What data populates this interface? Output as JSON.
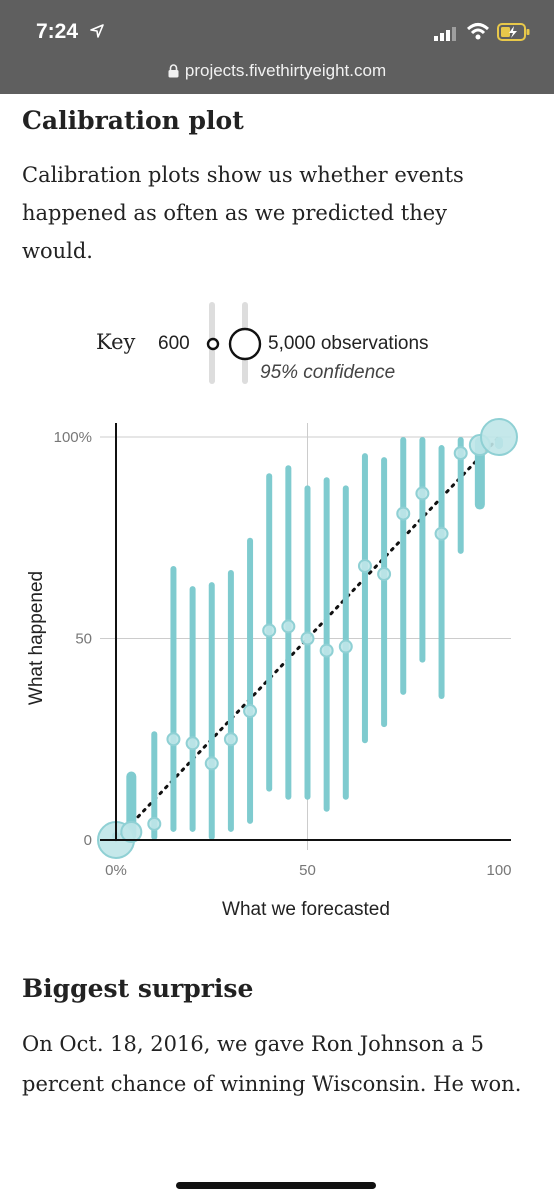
{
  "status_bar": {
    "time": "7:24"
  },
  "browser": {
    "url": "projects.fivethirtyeight.com"
  },
  "calibration": {
    "title": "Calibration plot",
    "description": "Calibration plots show us whether events happened as often as we predicted they would."
  },
  "key": {
    "label": "Key",
    "small_count": "600",
    "large_count": "5,000 observations",
    "confidence": "95% confidence"
  },
  "colors": {
    "accent": "#7fcbcf",
    "point": "#bfe6e8",
    "grid": "#cccccc",
    "axis": "#111111"
  },
  "chart_data": {
    "type": "scatter",
    "xlabel": "What we forecasted",
    "ylabel": "What happened",
    "xlim": [
      0,
      100
    ],
    "ylim": [
      0,
      100
    ],
    "x_ticks": [
      "0%",
      "50",
      "100"
    ],
    "y_ticks": [
      "0",
      "50",
      "100%"
    ],
    "reference_line": "diagonal dotted",
    "grid": true,
    "series": [
      {
        "points": [
          {
            "x": 0,
            "y": 0,
            "low": 0,
            "high": 2,
            "size": "large"
          },
          {
            "x": 4,
            "y": 2,
            "low": 0,
            "high": 17,
            "size": "medium"
          },
          {
            "x": 10,
            "y": 4,
            "low": 0,
            "high": 27,
            "size": "small"
          },
          {
            "x": 15,
            "y": 25,
            "low": 2,
            "high": 68,
            "size": "small"
          },
          {
            "x": 20,
            "y": 24,
            "low": 2,
            "high": 63,
            "size": "small"
          },
          {
            "x": 25,
            "y": 19,
            "low": 0,
            "high": 64,
            "size": "small"
          },
          {
            "x": 30,
            "y": 25,
            "low": 2,
            "high": 67,
            "size": "small"
          },
          {
            "x": 35,
            "y": 32,
            "low": 4,
            "high": 75,
            "size": "small"
          },
          {
            "x": 40,
            "y": 52,
            "low": 12,
            "high": 91,
            "size": "small"
          },
          {
            "x": 45,
            "y": 53,
            "low": 10,
            "high": 93,
            "size": "small"
          },
          {
            "x": 50,
            "y": 50,
            "low": 10,
            "high": 88,
            "size": "small"
          },
          {
            "x": 55,
            "y": 47,
            "low": 7,
            "high": 90,
            "size": "small"
          },
          {
            "x": 60,
            "y": 48,
            "low": 10,
            "high": 88,
            "size": "small"
          },
          {
            "x": 65,
            "y": 68,
            "low": 24,
            "high": 96,
            "size": "small"
          },
          {
            "x": 70,
            "y": 66,
            "low": 28,
            "high": 95,
            "size": "small"
          },
          {
            "x": 75,
            "y": 81,
            "low": 36,
            "high": 100,
            "size": "small"
          },
          {
            "x": 80,
            "y": 86,
            "low": 44,
            "high": 100,
            "size": "small"
          },
          {
            "x": 85,
            "y": 76,
            "low": 35,
            "high": 98,
            "size": "small"
          },
          {
            "x": 90,
            "y": 96,
            "low": 71,
            "high": 100,
            "size": "small"
          },
          {
            "x": 95,
            "y": 98,
            "low": 82,
            "high": 100,
            "size": "medium"
          },
          {
            "x": 100,
            "y": 100,
            "low": 97,
            "high": 100,
            "size": "large"
          }
        ]
      }
    ]
  },
  "surprise": {
    "title": "Biggest surprise",
    "description": "On Oct. 18, 2016, we gave Ron Johnson a 5 percent chance of winning Wisconsin. He won."
  }
}
